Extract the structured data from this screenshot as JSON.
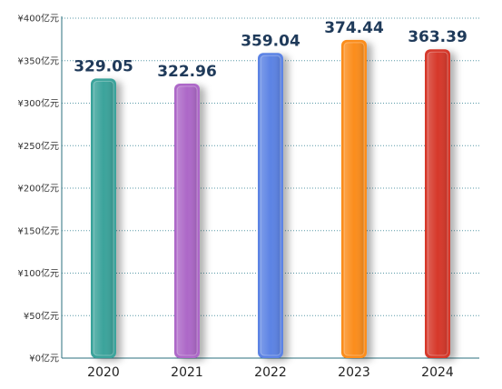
{
  "chart_data": {
    "type": "bar",
    "categories": [
      "2020",
      "2021",
      "2022",
      "2023",
      "2024"
    ],
    "values": [
      329.05,
      322.96,
      359.04,
      374.44,
      363.39
    ],
    "value_labels": [
      "329.05",
      "322.96",
      "359.04",
      "374.44",
      "363.39"
    ],
    "ylim": [
      0,
      400
    ],
    "yticks": [
      0,
      50,
      100,
      150,
      200,
      250,
      300,
      350,
      400
    ],
    "ytick_labels": [
      "¥0亿元",
      "¥50亿元",
      "¥100亿元",
      "¥150亿元",
      "¥200亿元",
      "¥250亿元",
      "¥300亿元",
      "¥350亿元",
      "¥400亿元"
    ],
    "colors": [
      "#3aa39b",
      "#ad68c8",
      "#5b83e4",
      "#fb8d1c",
      "#d6392a"
    ],
    "grid": true,
    "grid_color": "#5a9aa8",
    "axis_color": "#2b6f7d",
    "value_label_color": "#1f3a5a",
    "title": "",
    "xlabel": "",
    "ylabel": ""
  }
}
